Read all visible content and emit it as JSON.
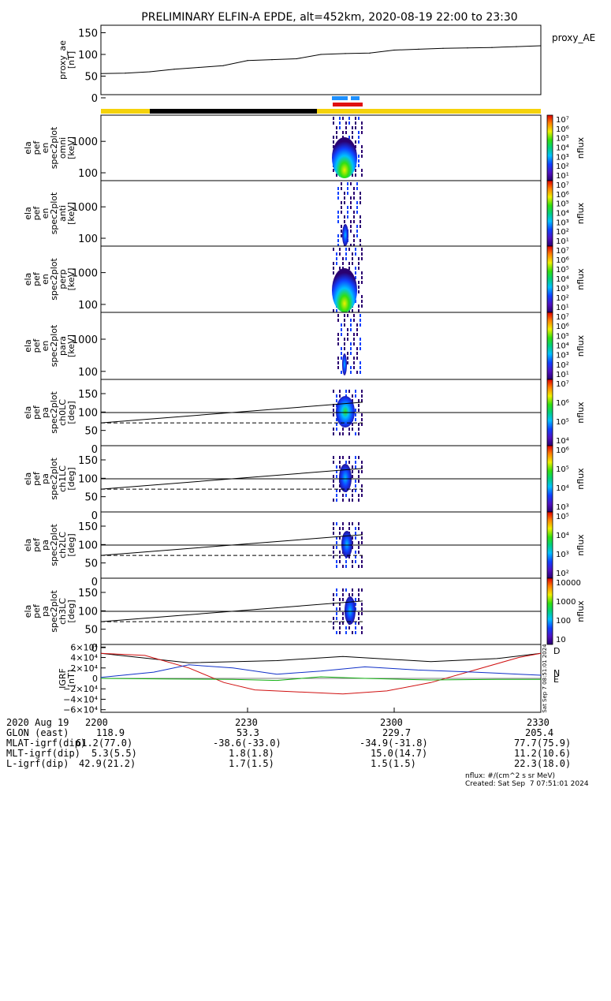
{
  "title": "PRELIMINARY ELFIN-A EPDE, alt=452km, 2020-08-19 22:00 to 23:30",
  "chart_data": [
    {
      "type": "line",
      "id": "ae",
      "ylabel": [
        "proxy_ae",
        "[nT]"
      ],
      "legend": "proxy_AE",
      "ylim": [
        0,
        160
      ],
      "yticks": [
        "150",
        "100",
        "50",
        "0"
      ],
      "ytick_values": [
        150,
        100,
        50,
        0
      ],
      "x": [
        0,
        5,
        10,
        15,
        20,
        25,
        30,
        35,
        40,
        45,
        50,
        55,
        60,
        65,
        70,
        75,
        80,
        85,
        90
      ],
      "y": [
        56,
        57,
        60,
        66,
        70,
        74,
        86,
        88,
        90,
        100,
        102,
        103,
        110,
        112,
        114,
        115,
        116,
        118,
        120
      ]
    },
    {
      "type": "heatmap",
      "id": "omni",
      "ylabel": [
        "ela",
        "pef",
        "en",
        "spec2plot",
        "omni",
        "[keV]"
      ],
      "yticks": [
        "1000",
        "100"
      ],
      "cbar": {
        "ticks": [
          "10⁷",
          "10⁶",
          "10⁵",
          "10⁴",
          "10³",
          "10²",
          "10¹"
        ],
        "label": "nflux"
      }
    },
    {
      "type": "heatmap",
      "id": "anti",
      "ylabel": [
        "ela",
        "pef",
        "en",
        "spec2plot",
        "anti",
        "[keV]"
      ],
      "yticks": [
        "1000",
        "100"
      ],
      "cbar": {
        "ticks": [
          "10⁷",
          "10⁶",
          "10⁵",
          "10⁴",
          "10³",
          "10²",
          "10¹"
        ],
        "label": "nflux"
      }
    },
    {
      "type": "heatmap",
      "id": "perp",
      "ylabel": [
        "ela",
        "pef",
        "en",
        "spec2plot",
        "perp",
        "[keV]"
      ],
      "yticks": [
        "1000",
        "100"
      ],
      "cbar": {
        "ticks": [
          "10⁷",
          "10⁶",
          "10⁵",
          "10⁴",
          "10³",
          "10²",
          "10¹"
        ],
        "label": "nflux"
      }
    },
    {
      "type": "heatmap",
      "id": "para",
      "ylabel": [
        "ela",
        "pef",
        "en",
        "spec2plot",
        "para",
        "[keV]"
      ],
      "yticks": [
        "1000",
        "100"
      ],
      "cbar": {
        "ticks": [
          "10⁷",
          "10⁶",
          "10⁵",
          "10⁴",
          "10³",
          "10²",
          "10¹"
        ],
        "label": "nflux"
      }
    },
    {
      "type": "heatmap",
      "id": "ch0",
      "ylabel": [
        "ela",
        "pef",
        "pa",
        "spec2plot",
        "ch0LC",
        "[deg]"
      ],
      "yticks": [
        "150",
        "100",
        "50",
        "0"
      ],
      "cbar": {
        "ticks": [
          "10⁷",
          "10⁶",
          "10⁵",
          "10⁴"
        ],
        "label": "nflux"
      }
    },
    {
      "type": "heatmap",
      "id": "ch1",
      "ylabel": [
        "ela",
        "pef",
        "pa",
        "spec2plot",
        "ch1LC",
        "[deg]"
      ],
      "yticks": [
        "150",
        "100",
        "50",
        "0"
      ],
      "cbar": {
        "ticks": [
          "10⁶",
          "10⁵",
          "10⁴",
          "10³"
        ],
        "label": "nflux"
      }
    },
    {
      "type": "heatmap",
      "id": "ch2",
      "ylabel": [
        "ela",
        "pef",
        "pa",
        "spec2plot",
        "ch2LC",
        "[deg]"
      ],
      "yticks": [
        "150",
        "100",
        "50",
        "0"
      ],
      "cbar": {
        "ticks": [
          "10⁵",
          "10⁴",
          "10³",
          "10²"
        ],
        "label": "nflux"
      }
    },
    {
      "type": "heatmap",
      "id": "ch3",
      "ylabel": [
        "ela",
        "pef",
        "pa",
        "spec2plot",
        "ch3LC",
        "[deg]"
      ],
      "yticks": [
        "150",
        "100",
        "50",
        "0"
      ],
      "cbar": {
        "ticks": [
          "10000",
          "1000",
          "100",
          "10"
        ],
        "label": "nflux"
      }
    },
    {
      "type": "line",
      "id": "igrf",
      "ylabel": [
        "IGRF",
        "[nT]"
      ],
      "yticks": [
        "6×10⁴",
        "4×10⁴",
        "2×10⁴",
        "0",
        "−2×10⁴",
        "−4×10⁴",
        "−6×10⁴"
      ],
      "legend": [
        "D",
        "N",
        "E"
      ],
      "series_colors": [
        "#d01010",
        "#1030c8",
        "#10b010",
        "#000000"
      ],
      "stamp": "Sat Sep  7 08:51:01 2024"
    }
  ],
  "footer": {
    "rows": [
      {
        "label": "2020 Aug 19",
        "values": [
          "2200",
          "2230",
          "2300",
          "2330"
        ]
      },
      {
        "label": "GLON (east)",
        "values": [
          "118.9",
          "53.3",
          "229.7",
          "205.4"
        ]
      },
      {
        "label": "MLAT-igrf(dip)",
        "values": [
          "61.2(77.0)",
          "-38.6(-33.0)",
          "-34.9(-31.8)",
          "77.7(75.9)"
        ]
      },
      {
        "label": "MLT-igrf(dip)",
        "values": [
          "5.3(5.5)",
          "1.8(1.8)",
          "15.0(14.7)",
          "11.2(10.6)"
        ]
      },
      {
        "label": "L-igrf(dip)",
        "values": [
          "42.9(21.2)",
          "1.7(1.5)",
          "1.5(1.5)",
          "22.3(18.0)"
        ]
      }
    ],
    "units_note": "nflux: #/(cm^2 s sr MeV)",
    "created": "Created: Sat Sep  7 07:51:01 2024"
  },
  "colors": {
    "yellow": "#f5d20a",
    "black": "#000000",
    "blue": "#1e90ff",
    "red": "#e01010"
  }
}
